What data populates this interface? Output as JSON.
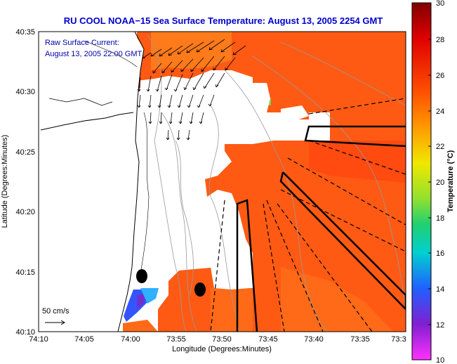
{
  "title": "RU COOL  NOAA−15  Sea Surface Temperature:  August 13, 2005 2254 GMT",
  "inset": {
    "line1": "Raw Surface Current:",
    "line2": "August 13, 2005 22:00 GMT"
  },
  "scale_label": "50 cm/s",
  "axes": {
    "xlabel": "Longitude (Degrees:Minutes)",
    "ylabel": "Latitude (Degrees:Minutes)",
    "xticks": [
      "74:10",
      "74:05",
      "74:00",
      "73:55",
      "73:50",
      "73:45",
      "73:40",
      "73:35",
      "73:3"
    ],
    "yticks": [
      "40:35",
      "40:30",
      "40:25",
      "40:20",
      "40:15",
      "40:10"
    ]
  },
  "colorbar": {
    "label": "Temperature (°C)",
    "ticks": [
      "30",
      "28",
      "26",
      "24",
      "22",
      "20",
      "18",
      "16",
      "14",
      "12",
      "10"
    ],
    "min": 10,
    "max": 30
  },
  "colors": {
    "title": "#0000cc",
    "inset_text": "#0000aa",
    "sst_dominant": "#ff5a14",
    "land": "#ffffff"
  }
}
